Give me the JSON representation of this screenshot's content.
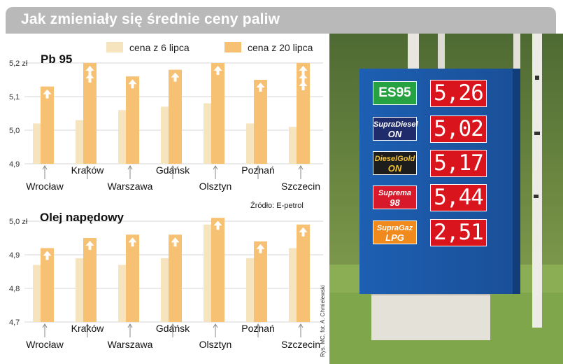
{
  "header": {
    "title": "Jak zmieniały się średnie ceny paliw"
  },
  "legend": {
    "items": [
      {
        "label": "cena z 6 lipca",
        "color": "#f6e4bf"
      },
      {
        "label": "cena z 20 lipca",
        "color": "#f7c173"
      }
    ]
  },
  "chart_data": [
    {
      "type": "bar",
      "title": "Pb 95",
      "yunit": "zł",
      "ylim": [
        4.9,
        5.2
      ],
      "yticks": [
        "4,9",
        "5,0",
        "5,1",
        "5,2 zł"
      ],
      "categories": [
        "Wrocław",
        "Kraków",
        "Warszawa",
        "Gdańsk",
        "Olsztyn",
        "Poznań",
        "Szczecin"
      ],
      "series": [
        {
          "name": "cena z 6 lipca",
          "values": [
            5.02,
            5.03,
            5.06,
            5.07,
            5.08,
            5.02,
            5.01
          ]
        },
        {
          "name": "cena z 20 lipca",
          "values": [
            5.13,
            5.2,
            5.16,
            5.18,
            5.2,
            5.15,
            5.2
          ]
        }
      ],
      "arrows": [
        1,
        2,
        1,
        1,
        1,
        1,
        3
      ]
    },
    {
      "type": "bar",
      "title": "Olej napędowy",
      "yunit": "zł",
      "ylim": [
        4.7,
        5.0
      ],
      "yticks": [
        "4,7",
        "4,8",
        "4,9",
        "5,0 zł"
      ],
      "categories": [
        "Wrocław",
        "Kraków",
        "Warszawa",
        "Gdańsk",
        "Olsztyn",
        "Poznań",
        "Szczecin"
      ],
      "series": [
        {
          "name": "cena z 6 lipca",
          "values": [
            4.87,
            4.89,
            4.87,
            4.89,
            4.99,
            4.89,
            4.92
          ]
        },
        {
          "name": "cena z 20 lipca",
          "values": [
            4.92,
            4.95,
            4.96,
            4.96,
            5.01,
            4.94,
            4.99
          ]
        }
      ],
      "arrows": [
        1,
        1,
        1,
        1,
        1,
        1,
        1
      ]
    }
  ],
  "source": "Źródło: E-petrol",
  "credit": "Rys. MC, fot. A. Chmielewski",
  "sign": {
    "rows": [
      {
        "fuel": "ES95",
        "line2": "",
        "price": "5,26",
        "style": "es95"
      },
      {
        "fuel": "SupraDiesel",
        "line2": "ON",
        "price": "5,02",
        "style": "diesel"
      },
      {
        "fuel": "DieselGold",
        "line2": "ON",
        "price": "5,17",
        "style": "gold"
      },
      {
        "fuel": "Suprema",
        "line2": "98",
        "price": "5,44",
        "style": "suprema"
      },
      {
        "fuel": "SupraGaz",
        "line2": "LPG",
        "price": "2,51",
        "style": "gaz"
      }
    ]
  }
}
